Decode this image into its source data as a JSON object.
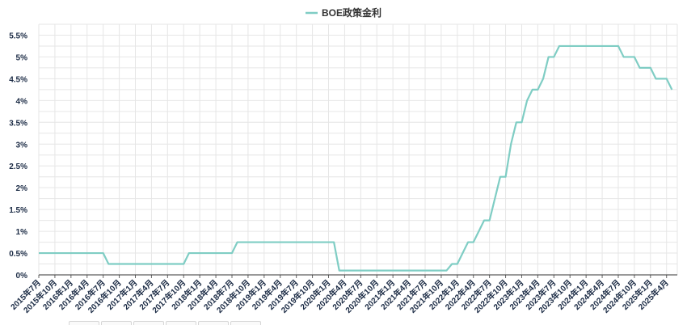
{
  "chart_data": {
    "type": "line",
    "legend": {
      "label": "BOE政策金利",
      "position": "top-center"
    },
    "colors": {
      "series": "#7fcdc4",
      "grid": "#e6e6e6",
      "axis": "#333333",
      "text": "#1a2a44"
    },
    "grid": true,
    "ylim": [
      0,
      5.75
    ],
    "y_ticks": [
      {
        "value": 0,
        "label": "0%"
      },
      {
        "value": 0.5,
        "label": "0.5%"
      },
      {
        "value": 1,
        "label": "1%"
      },
      {
        "value": 1.5,
        "label": "1.5%"
      },
      {
        "value": 2,
        "label": "2%"
      },
      {
        "value": 2.5,
        "label": "2.5%"
      },
      {
        "value": 3,
        "label": "3%"
      },
      {
        "value": 3.5,
        "label": "3.5%"
      },
      {
        "value": 4,
        "label": "4%"
      },
      {
        "value": 4.5,
        "label": "4.5%"
      },
      {
        "value": 5,
        "label": "5%"
      },
      {
        "value": 5.5,
        "label": "5.5%"
      }
    ],
    "x_tick_labels": [
      "2015年7月",
      "2015年10月",
      "2016年1月",
      "2016年4月",
      "2016年7月",
      "2016年10月",
      "2017年1月",
      "2017年4月",
      "2017年7月",
      "2017年10月",
      "2018年1月",
      "2018年4月",
      "2018年7月",
      "2018年10月",
      "2019年1月",
      "2019年4月",
      "2019年7月",
      "2019年10月",
      "2020年1月",
      "2020年4月",
      "2020年7月",
      "2020年10月",
      "2021年1月",
      "2021年4月",
      "2021年7月",
      "2021年10月",
      "2022年1月",
      "2022年4月",
      "2022年7月",
      "2022年10月",
      "2023年1月",
      "2023年4月",
      "2023年7月",
      "2023年10月",
      "2024年1月",
      "2024年4月",
      "2024年7月",
      "2024年10月",
      "2025年1月",
      "2025年4月"
    ],
    "series": [
      {
        "name": "BOE政策金利",
        "points": [
          {
            "x": "2015-07",
            "y": 0.5
          },
          {
            "x": "2016-07",
            "y": 0.5
          },
          {
            "x": "2016-08",
            "y": 0.25
          },
          {
            "x": "2017-10",
            "y": 0.25
          },
          {
            "x": "2017-11",
            "y": 0.5
          },
          {
            "x": "2018-07",
            "y": 0.5
          },
          {
            "x": "2018-08",
            "y": 0.75
          },
          {
            "x": "2020-02",
            "y": 0.75
          },
          {
            "x": "2020-03",
            "y": 0.1
          },
          {
            "x": "2021-11",
            "y": 0.1
          },
          {
            "x": "2021-12",
            "y": 0.25
          },
          {
            "x": "2022-01",
            "y": 0.25
          },
          {
            "x": "2022-02",
            "y": 0.5
          },
          {
            "x": "2022-03",
            "y": 0.75
          },
          {
            "x": "2022-04",
            "y": 0.75
          },
          {
            "x": "2022-05",
            "y": 1.0
          },
          {
            "x": "2022-06",
            "y": 1.25
          },
          {
            "x": "2022-07",
            "y": 1.25
          },
          {
            "x": "2022-08",
            "y": 1.75
          },
          {
            "x": "2022-09",
            "y": 2.25
          },
          {
            "x": "2022-10",
            "y": 2.25
          },
          {
            "x": "2022-11",
            "y": 3.0
          },
          {
            "x": "2022-12",
            "y": 3.5
          },
          {
            "x": "2023-01",
            "y": 3.5
          },
          {
            "x": "2023-02",
            "y": 4.0
          },
          {
            "x": "2023-03",
            "y": 4.25
          },
          {
            "x": "2023-04",
            "y": 4.25
          },
          {
            "x": "2023-05",
            "y": 4.5
          },
          {
            "x": "2023-06",
            "y": 5.0
          },
          {
            "x": "2023-07",
            "y": 5.0
          },
          {
            "x": "2023-08",
            "y": 5.25
          },
          {
            "x": "2024-07",
            "y": 5.25
          },
          {
            "x": "2024-08",
            "y": 5.0
          },
          {
            "x": "2024-10",
            "y": 5.0
          },
          {
            "x": "2024-11",
            "y": 4.75
          },
          {
            "x": "2025-01",
            "y": 4.75
          },
          {
            "x": "2025-02",
            "y": 4.5
          },
          {
            "x": "2025-04",
            "y": 4.5
          },
          {
            "x": "2025-05",
            "y": 4.25
          }
        ]
      }
    ]
  }
}
